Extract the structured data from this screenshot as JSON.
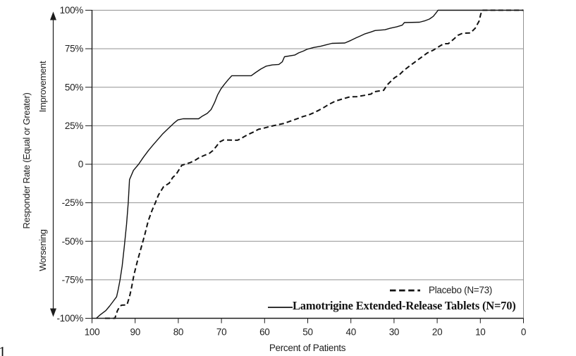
{
  "figure": {
    "background": "#ffffff",
    "y_axis_title": "Responder Rate (Equal or Greater)",
    "improvement_label": "Improvement",
    "worsening_label": "Worsening",
    "x_axis_title": "Percent of Patients",
    "cropped_fragment": "1"
  },
  "legend": {
    "placebo_label": "Placebo (N=73)",
    "lamotrigine_label": "Lamotrigine Extended-Release Tablets (N=70)"
  },
  "colors": {
    "text": "#1f1f1f",
    "axis": "#1c1c1c",
    "grid": "#929292",
    "line": "#111111",
    "background": "#ffffff"
  },
  "chart_data": {
    "type": "line",
    "title": "",
    "xlabel": "Percent of Patients",
    "ylabel": "Responder Rate (Equal or Greater)",
    "xlim": [
      100,
      0
    ],
    "ylim": [
      -100,
      100
    ],
    "x_axis_reversed": true,
    "grid": "horizontal",
    "legend_position": "inside-bottom-right",
    "x_ticks": [
      100,
      90,
      80,
      70,
      60,
      50,
      40,
      30,
      20,
      10,
      0
    ],
    "x_tick_labels": [
      "100",
      "90",
      "80",
      "70",
      "60",
      "50",
      "40",
      "30",
      "20",
      "10",
      "0"
    ],
    "y_ticks": [
      100,
      75,
      50,
      25,
      0,
      -25,
      -50,
      -75,
      -100
    ],
    "y_tick_labels": [
      "100%",
      "75%",
      "50%",
      "25%",
      "0",
      "-25%",
      "-50%",
      "-75%",
      "-100%"
    ],
    "series": [
      {
        "name": "Lamotrigine Extended-Release Tablets (N=70)",
        "style": "solid",
        "points": [
          [
            99,
            -100
          ],
          [
            98.2,
            -98
          ],
          [
            96.8,
            -95
          ],
          [
            95.9,
            -92
          ],
          [
            95.1,
            -89
          ],
          [
            94.3,
            -86
          ],
          [
            93.9,
            -81
          ],
          [
            93.5,
            -75
          ],
          [
            93,
            -66
          ],
          [
            92.5,
            -53
          ],
          [
            92,
            -39
          ],
          [
            91.6,
            -25
          ],
          [
            91.3,
            -10
          ],
          [
            90.4,
            -4
          ],
          [
            89.2,
            0
          ],
          [
            88.1,
            4.5
          ],
          [
            86.9,
            9
          ],
          [
            85.7,
            13
          ],
          [
            84.6,
            16.5
          ],
          [
            83.7,
            19.5
          ],
          [
            82.4,
            23
          ],
          [
            81.1,
            26.5
          ],
          [
            80.1,
            28.8
          ],
          [
            78.9,
            29.5
          ],
          [
            75.3,
            29.5
          ],
          [
            74.4,
            31.3
          ],
          [
            73.3,
            33
          ],
          [
            72.4,
            35.5
          ],
          [
            71.6,
            40
          ],
          [
            70.9,
            45
          ],
          [
            70.1,
            49
          ],
          [
            69.3,
            52
          ],
          [
            68.4,
            55
          ],
          [
            67.6,
            57.5
          ],
          [
            63.1,
            57.5
          ],
          [
            62.1,
            59.5
          ],
          [
            60.9,
            61.8
          ],
          [
            59.6,
            63.7
          ],
          [
            58.2,
            64.5
          ],
          [
            56.7,
            64.8
          ],
          [
            55.9,
            66.5
          ],
          [
            55.4,
            69.8
          ],
          [
            53,
            70.9
          ],
          [
            52.1,
            72.3
          ],
          [
            51,
            73.5
          ],
          [
            50.2,
            74.6
          ],
          [
            48.7,
            75.8
          ],
          [
            47,
            76.6
          ],
          [
            45.8,
            77.5
          ],
          [
            44.4,
            78.5
          ],
          [
            41.4,
            78.7
          ],
          [
            40,
            80.4
          ],
          [
            38.7,
            82.2
          ],
          [
            37.8,
            83.3
          ],
          [
            36.7,
            84.7
          ],
          [
            35.5,
            85.7
          ],
          [
            34.4,
            86.8
          ],
          [
            32.1,
            87.3
          ],
          [
            30.9,
            88.3
          ],
          [
            29.4,
            89.2
          ],
          [
            28.1,
            90.3
          ],
          [
            27.6,
            92
          ],
          [
            24.1,
            92.2
          ],
          [
            22.9,
            93.1
          ],
          [
            21.8,
            94.3
          ],
          [
            20.9,
            96
          ],
          [
            20.2,
            98.5
          ],
          [
            19.8,
            100
          ],
          [
            0,
            100
          ]
        ]
      },
      {
        "name": "Placebo (N=73)",
        "style": "dashed",
        "points": [
          [
            97,
            -100
          ],
          [
            94.7,
            -100
          ],
          [
            94.1,
            -95
          ],
          [
            93.5,
            -92
          ],
          [
            93.1,
            -91.5
          ],
          [
            91.9,
            -91.3
          ],
          [
            91.3,
            -86
          ],
          [
            90.9,
            -81
          ],
          [
            90.3,
            -72
          ],
          [
            89.5,
            -63
          ],
          [
            88.7,
            -55
          ],
          [
            87.8,
            -46
          ],
          [
            87,
            -37
          ],
          [
            86.1,
            -30
          ],
          [
            85.4,
            -25.5
          ],
          [
            84.6,
            -20
          ],
          [
            83.4,
            -14.5
          ],
          [
            82.1,
            -12.3
          ],
          [
            81.3,
            -8.6
          ],
          [
            80.5,
            -6.6
          ],
          [
            79.2,
            -0.7
          ],
          [
            78.1,
            0.3
          ],
          [
            77.2,
            1.1
          ],
          [
            76.1,
            2.6
          ],
          [
            75.1,
            4.4
          ],
          [
            74,
            5.7
          ],
          [
            72.8,
            7.1
          ],
          [
            72,
            8.9
          ],
          [
            71.2,
            11.6
          ],
          [
            70.4,
            14.5
          ],
          [
            69.5,
            15.8
          ],
          [
            66.3,
            15.6
          ],
          [
            65.6,
            16.4
          ],
          [
            64.7,
            18
          ],
          [
            63.7,
            19.5
          ],
          [
            62.5,
            21
          ],
          [
            61.4,
            22.7
          ],
          [
            60.4,
            23.3
          ],
          [
            59.3,
            24.1
          ],
          [
            58,
            25
          ],
          [
            56.5,
            25.9
          ],
          [
            55.5,
            26.5
          ],
          [
            53.9,
            28.1
          ],
          [
            52.4,
            29.6
          ],
          [
            51.1,
            31
          ],
          [
            49.8,
            32
          ],
          [
            48.7,
            33.3
          ],
          [
            47.4,
            35.1
          ],
          [
            46.2,
            37
          ],
          [
            45.1,
            38.9
          ],
          [
            43.5,
            41.1
          ],
          [
            41.8,
            42.5
          ],
          [
            40.2,
            43.8
          ],
          [
            38.6,
            43.9
          ],
          [
            36.9,
            44.7
          ],
          [
            35.3,
            45.6
          ],
          [
            34.8,
            47
          ],
          [
            32.4,
            48
          ],
          [
            31.6,
            51.5
          ],
          [
            29.9,
            56.1
          ],
          [
            28.8,
            58
          ],
          [
            27.8,
            60.8
          ],
          [
            26.3,
            64
          ],
          [
            25,
            66.7
          ],
          [
            23.4,
            70
          ],
          [
            22.3,
            72.2
          ],
          [
            20.9,
            74.1
          ],
          [
            19.6,
            76.4
          ],
          [
            18.5,
            78.2
          ],
          [
            17.4,
            78.3
          ],
          [
            16.1,
            81.4
          ],
          [
            15.2,
            83.7
          ],
          [
            14.1,
            85.1
          ],
          [
            12.3,
            85.2
          ],
          [
            11.2,
            88.3
          ],
          [
            10.3,
            92.9
          ],
          [
            9.9,
            97.5
          ],
          [
            9.5,
            100
          ],
          [
            0,
            100
          ]
        ]
      }
    ]
  }
}
